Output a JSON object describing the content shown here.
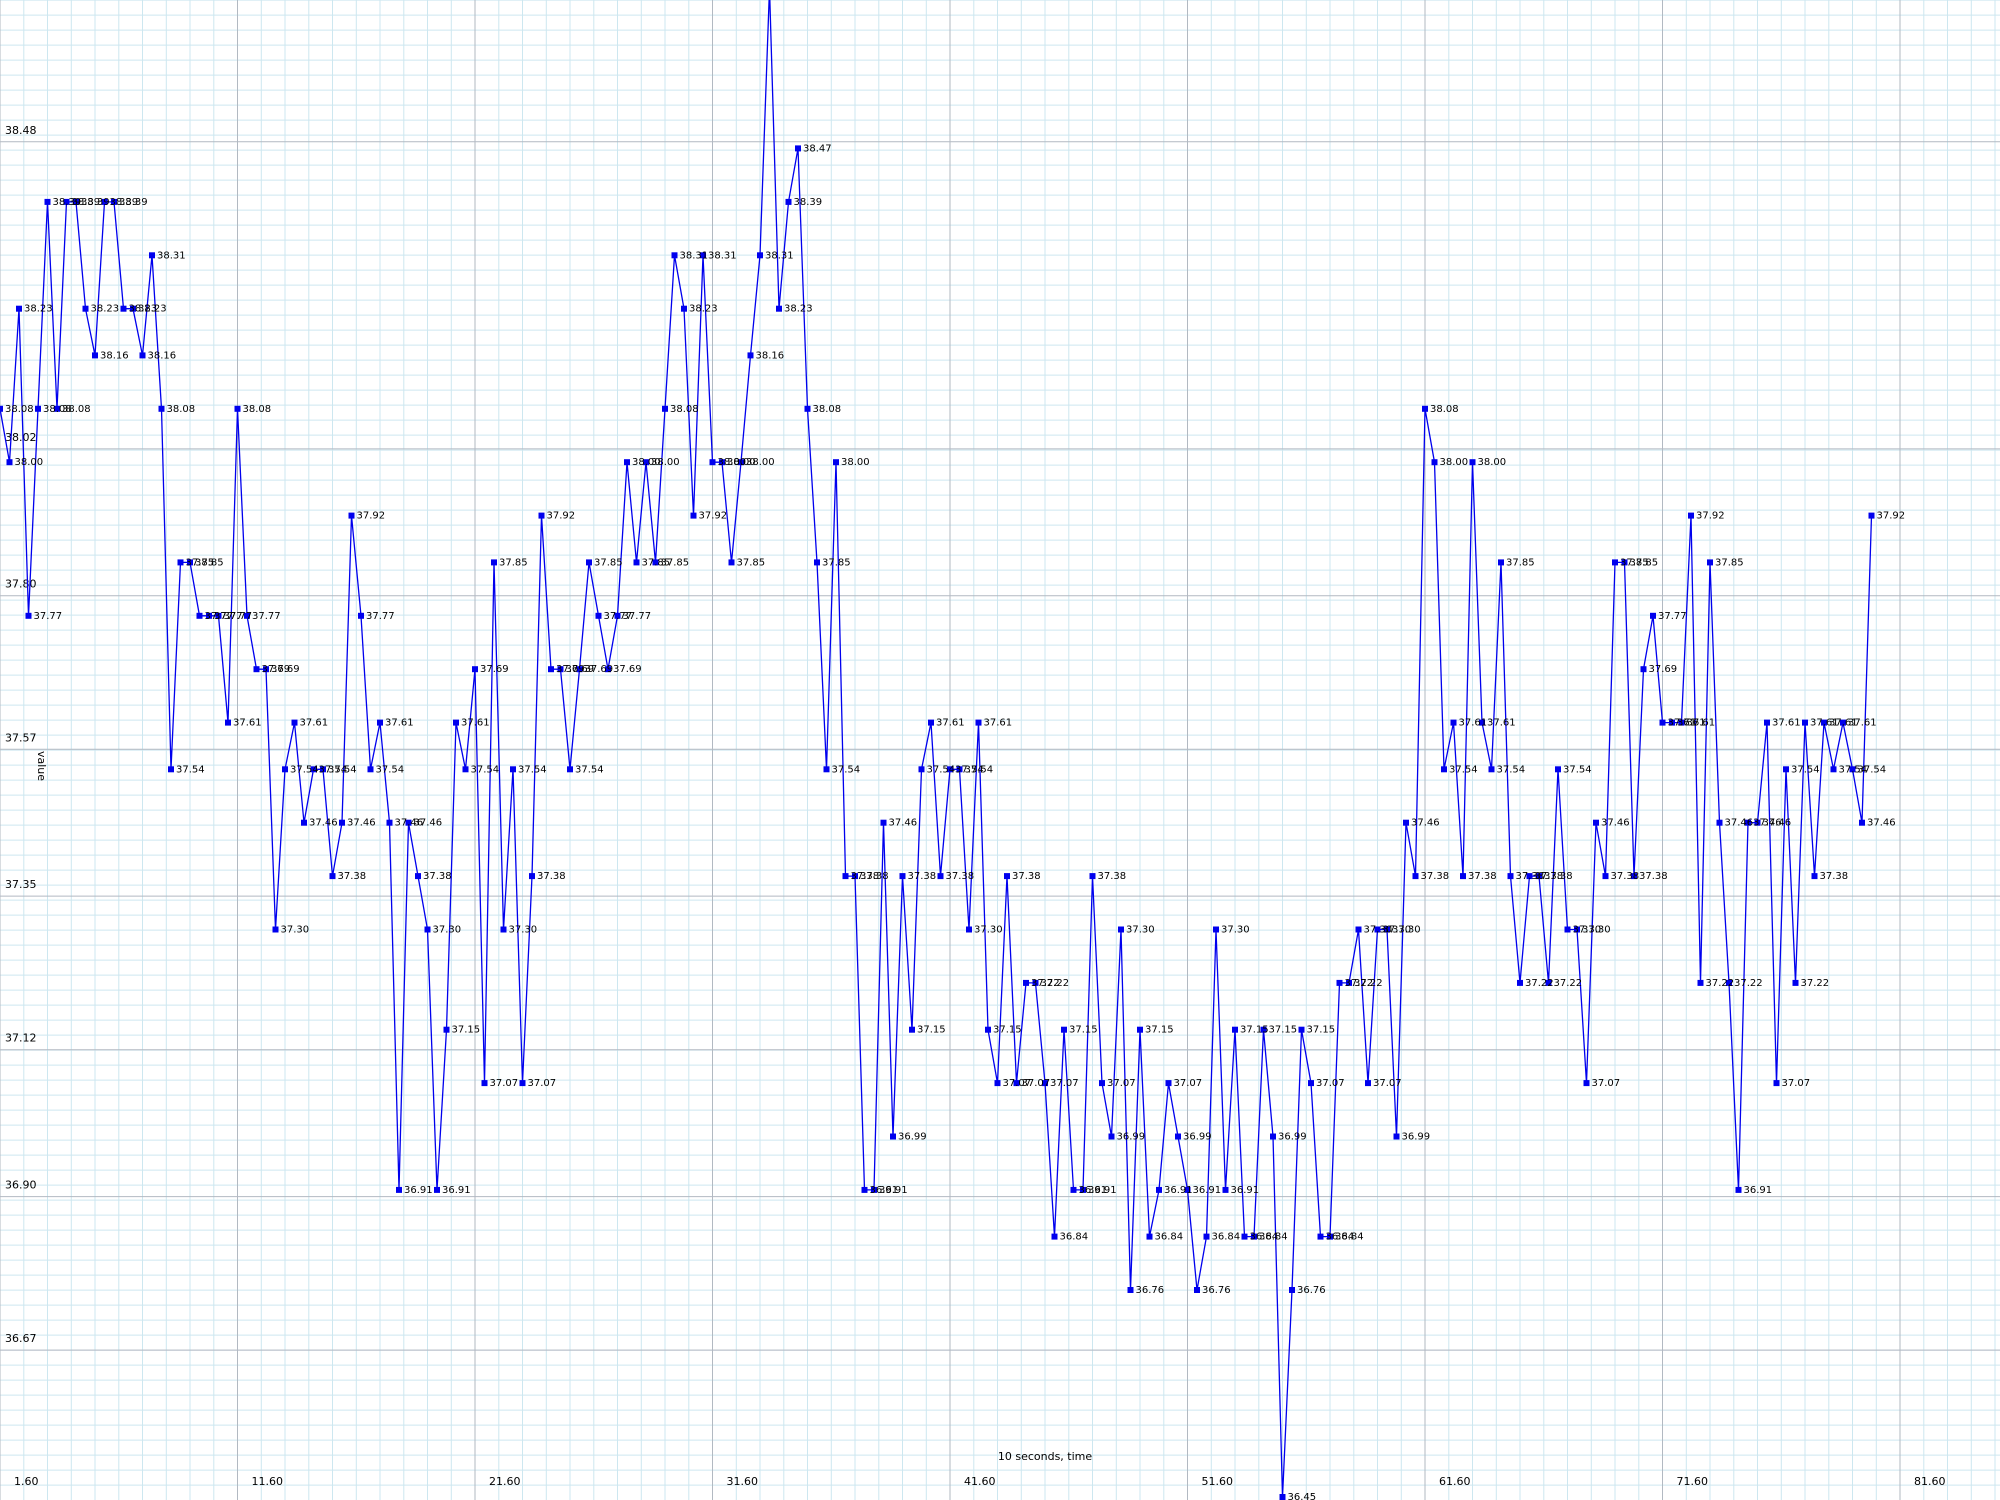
{
  "chart_data": {
    "type": "line",
    "title": "",
    "xlabel": "10 seconds, time",
    "ylabel": "value",
    "grid": true,
    "xlim": [
      1.6,
      85.6
    ],
    "ylim": [
      36.45,
      38.71
    ],
    "x_ticks": [
      1.6,
      11.6,
      21.6,
      31.6,
      41.6,
      51.6,
      61.6,
      71.6,
      81.6
    ],
    "x_tick_labels": [
      "1.60",
      "11.60",
      "21.60",
      "31.60",
      "41.60",
      "51.60",
      "61.60",
      "71.60",
      "81.60"
    ],
    "y_ticks": [
      36.67,
      36.9,
      37.12,
      37.35,
      37.57,
      37.8,
      38.02,
      38.48
    ],
    "y_tick_labels": [
      "36.67",
      "36.90",
      "37.12",
      "37.35",
      "37.57",
      "37.80",
      "38.02",
      "38.48"
    ],
    "x_step": 0.4,
    "point_labels": true,
    "label_decimals": 2,
    "series": [
      {
        "color": "#0000ee",
        "values": [
          38.08,
          38.0,
          38.23,
          37.77,
          38.08,
          38.39,
          38.08,
          38.39,
          38.39,
          38.23,
          38.16,
          38.39,
          38.39,
          38.23,
          38.23,
          38.16,
          38.31,
          38.08,
          37.54,
          37.85,
          37.85,
          37.77,
          37.77,
          37.77,
          37.61,
          38.08,
          37.77,
          37.69,
          37.69,
          37.3,
          37.54,
          37.61,
          37.46,
          37.54,
          37.54,
          37.38,
          37.46,
          37.92,
          37.77,
          37.54,
          37.61,
          37.46,
          36.91,
          37.46,
          37.38,
          37.3,
          36.91,
          37.15,
          37.61,
          37.54,
          37.69,
          37.07,
          37.85,
          37.3,
          37.54,
          37.07,
          37.38,
          37.92,
          37.69,
          37.69,
          37.54,
          37.69,
          37.85,
          37.77,
          37.69,
          37.77,
          38.0,
          37.85,
          38.0,
          37.85,
          38.08,
          38.31,
          38.23,
          37.92,
          38.31,
          38.0,
          38.0,
          37.85,
          38.0,
          38.16,
          38.31,
          38.71,
          38.23,
          38.39,
          38.47,
          38.08,
          37.85,
          37.54,
          38.0,
          37.38,
          37.38,
          36.91,
          36.91,
          37.46,
          36.99,
          37.38,
          37.15,
          37.54,
          37.61,
          37.38,
          37.54,
          37.54,
          37.3,
          37.61,
          37.15,
          37.07,
          37.38,
          37.07,
          37.22,
          37.22,
          37.07,
          36.84,
          37.15,
          36.91,
          36.91,
          37.38,
          37.07,
          36.99,
          37.3,
          36.76,
          37.15,
          36.84,
          36.91,
          37.07,
          36.99,
          36.91,
          36.76,
          36.84,
          37.3,
          36.91,
          37.15,
          36.84,
          36.84,
          37.15,
          36.99,
          36.45,
          36.76,
          37.15,
          37.07,
          36.84,
          36.84,
          37.22,
          37.22,
          37.3,
          37.07,
          37.3,
          37.3,
          36.99,
          37.46,
          37.38,
          38.08,
          38.0,
          37.54,
          37.61,
          37.38,
          38.0,
          37.61,
          37.54,
          37.85,
          37.38,
          37.22,
          37.38,
          37.38,
          37.22,
          37.54,
          37.3,
          37.3,
          37.07,
          37.46,
          37.38,
          37.85,
          37.85,
          37.38,
          37.69,
          37.77,
          37.61,
          37.61,
          37.61,
          37.92,
          37.22,
          37.85,
          37.46,
          37.22,
          36.91,
          37.46,
          37.46,
          37.61,
          37.07,
          37.54,
          37.22,
          37.61,
          37.38,
          37.61,
          37.54,
          37.61,
          37.54,
          37.46,
          37.92
        ]
      }
    ]
  }
}
